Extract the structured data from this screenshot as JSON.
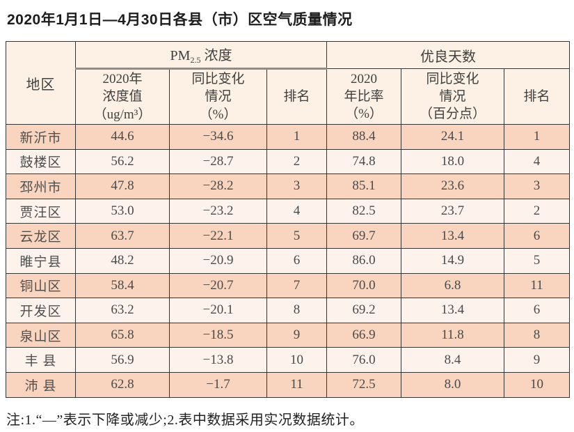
{
  "title": "2020年1月1日—4月30日各县（市）区空气质量情况",
  "note": "注:1.“—”表示下降或减少;2.表中数据采用实况数据统计。",
  "colors": {
    "header_bg": "#fdf0e4",
    "row_odd_bg": "#f9d4bf",
    "row_even_bg": "#fdf3ec",
    "border": "#343434",
    "group_underline": "#8d8d8d",
    "text": "#4a4a4a"
  },
  "chart_data": {
    "type": "table",
    "title": "2020年1月1日—4月30日各县（市）区空气质量情况",
    "header": {
      "region": "地区",
      "pm_group": {
        "prefix": "PM",
        "sub": "2.5",
        "suffix": " 浓度"
      },
      "good_days_group": "优良天数",
      "pm_value": "2020年\n浓度值\n（ug/m³）",
      "pm_change": "同比变化\n情况\n（%）",
      "pm_rank": "排名",
      "ratio_value": "2020\n年比率\n（%）",
      "ratio_change": "同比变化\n情况\n（百分点）",
      "ratio_rank": "排名"
    },
    "columns": [
      "地区",
      "2020年浓度值（ug/m³）",
      "同比变化情况（%）",
      "排名",
      "2020年比率（%）",
      "同比变化情况（百分点）",
      "排名"
    ],
    "rows": [
      [
        "新沂市",
        "44.6",
        "−34.6",
        "1",
        "88.4",
        "24.1",
        "1"
      ],
      [
        "鼓楼区",
        "56.2",
        "−28.7",
        "2",
        "74.8",
        "18.0",
        "4"
      ],
      [
        "邳州市",
        "47.8",
        "−28.2",
        "3",
        "85.1",
        "23.6",
        "3"
      ],
      [
        "贾汪区",
        "53.0",
        "−23.2",
        "4",
        "82.5",
        "23.7",
        "2"
      ],
      [
        "云龙区",
        "63.7",
        "−22.1",
        "5",
        "69.7",
        "13.4",
        "6"
      ],
      [
        "睢宁县",
        "48.2",
        "−20.9",
        "6",
        "86.0",
        "14.9",
        "5"
      ],
      [
        "铜山区",
        "58.4",
        "−20.7",
        "7",
        "70.0",
        "6.8",
        "11"
      ],
      [
        "开发区",
        "63.2",
        "−20.1",
        "8",
        "69.2",
        "13.4",
        "6"
      ],
      [
        "泉山区",
        "65.8",
        "−18.5",
        "9",
        "66.9",
        "11.8",
        "8"
      ],
      [
        "丰 县",
        "56.9",
        "−13.8",
        "10",
        "76.0",
        "8.4",
        "9"
      ],
      [
        "沛 县",
        "62.8",
        "−1.7",
        "11",
        "72.5",
        "8.0",
        "10"
      ]
    ]
  }
}
